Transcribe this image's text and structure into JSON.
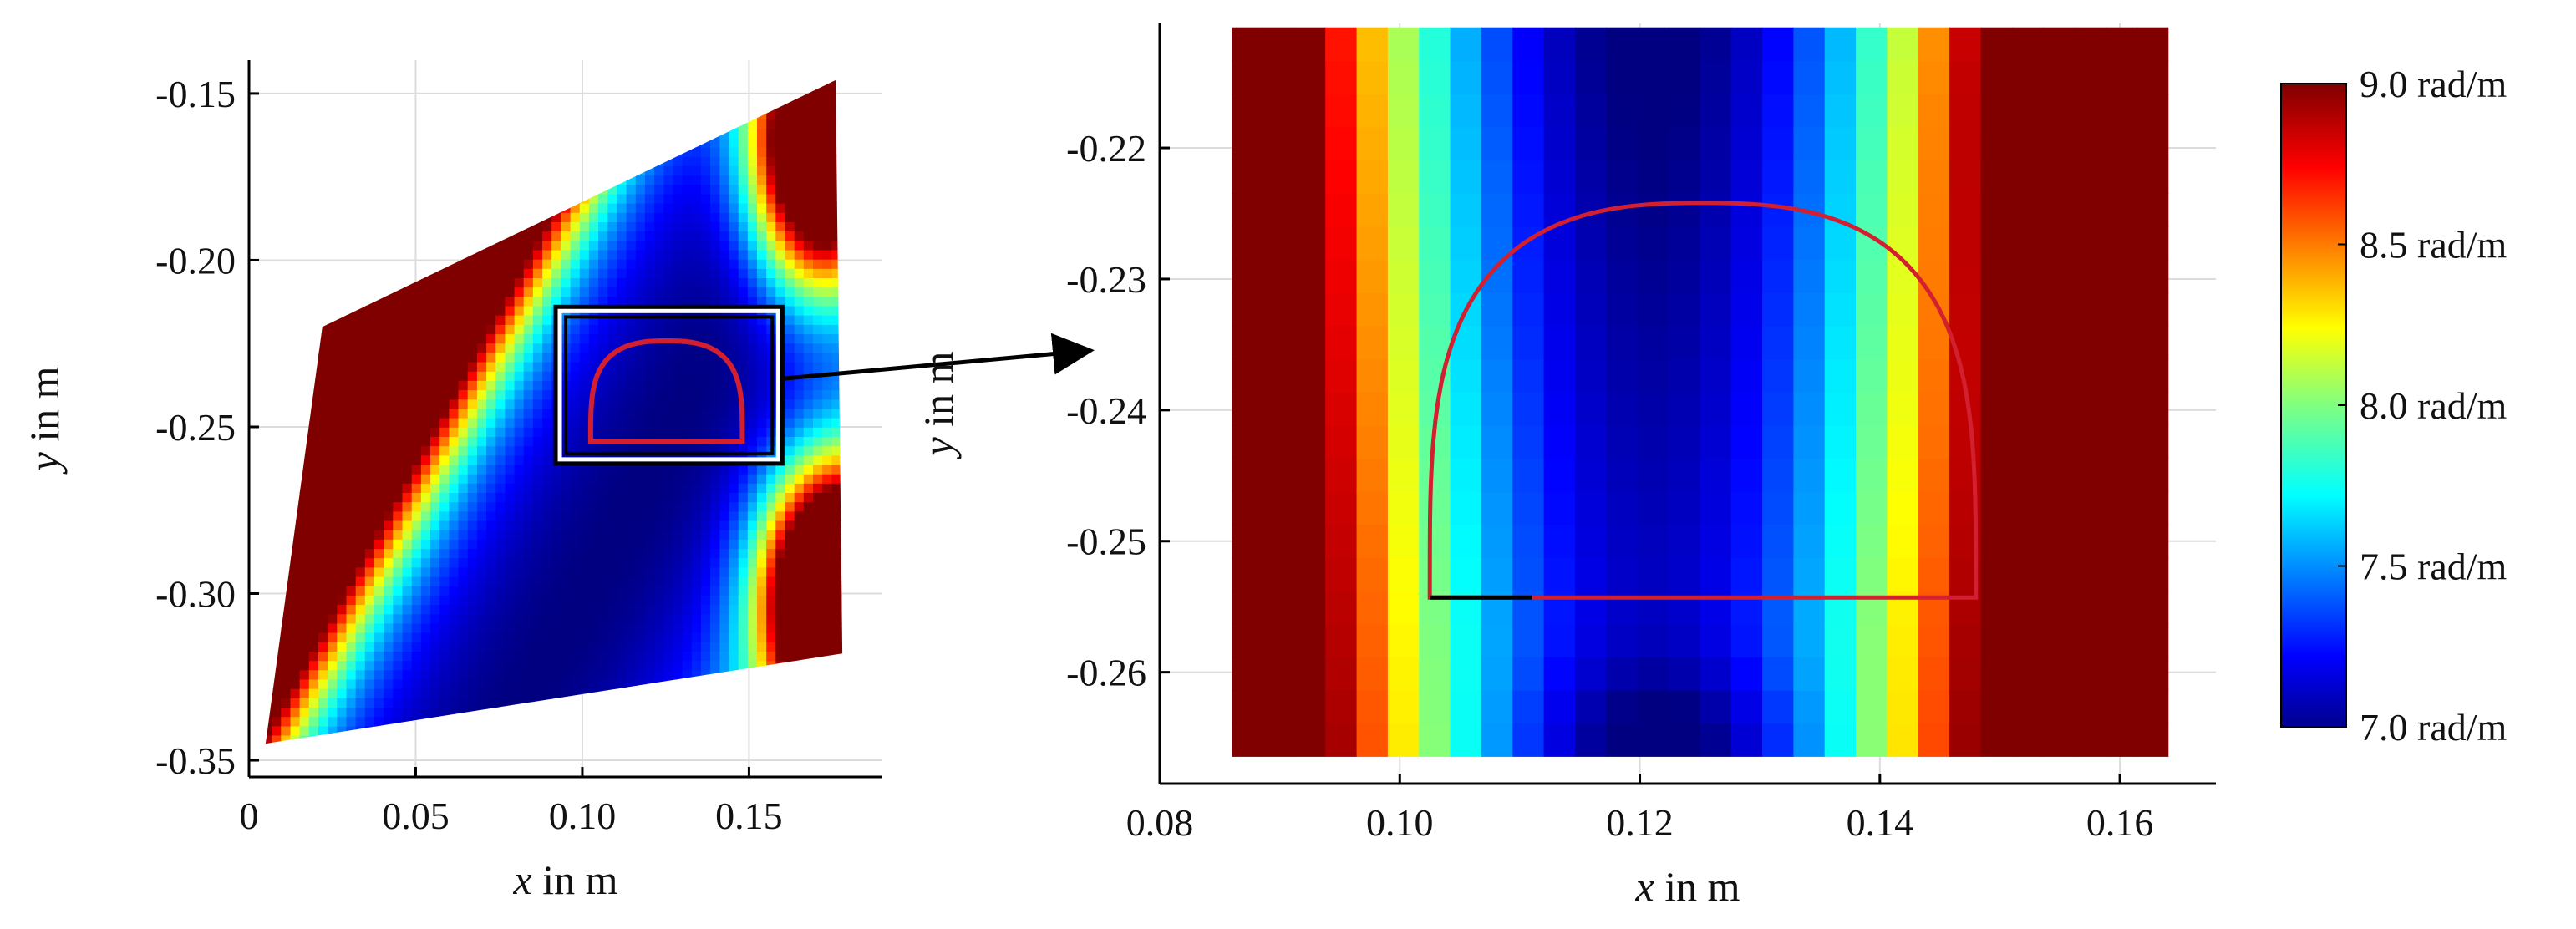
{
  "chart_data": [
    {
      "type": "heatmap",
      "title": "",
      "xlabel_var": "x",
      "xlabel_unit": "in m",
      "ylabel_var": "y",
      "ylabel_unit": "in m",
      "xlim": [
        0,
        0.19
      ],
      "ylim": [
        -0.355,
        -0.14
      ],
      "xticks": [
        0,
        0.05,
        0.1,
        0.15
      ],
      "xtick_labels": [
        "0",
        "0.05",
        "0.10",
        "0.15"
      ],
      "yticks": [
        -0.15,
        -0.2,
        -0.25,
        -0.3,
        -0.35
      ],
      "ytick_labels": [
        "-0.15",
        "-0.20",
        "-0.25",
        "-0.30",
        "-0.35"
      ],
      "grid": true,
      "field_region_corners": [
        [
          0.005,
          -0.345
        ],
        [
          0.022,
          -0.22
        ],
        [
          0.176,
          -0.146
        ],
        [
          0.178,
          -0.318
        ]
      ],
      "field_note": "Curvature field: high (>=9.0 rad/m) at left band and top-right/bottom-right corners, minimum (~7.0 rad/m) in diagonal valley near x=0.11-0.13",
      "zoom_box": {
        "x": [
          0.092,
          0.16
        ],
        "y": [
          -0.261,
          -0.214
        ]
      },
      "contour_outline": {
        "x_left": 0.1025,
        "x_right": 0.148,
        "y_bottom": -0.2543,
        "y_top": -0.2242
      }
    },
    {
      "type": "heatmap",
      "title": "",
      "xlabel_var": "x",
      "xlabel_unit": "in m",
      "ylabel_var": "y",
      "ylabel_unit": "in m",
      "xlim": [
        0.08,
        0.168
      ],
      "ylim": [
        -0.2685,
        -0.2105
      ],
      "xticks": [
        0.08,
        0.1,
        0.12,
        0.14,
        0.16
      ],
      "xtick_labels": [
        "0.08",
        "0.10",
        "0.12",
        "0.14",
        "0.16"
      ],
      "yticks": [
        -0.22,
        -0.23,
        -0.24,
        -0.25,
        -0.26
      ],
      "ytick_labels": [
        "-0.22",
        "-0.23",
        "-0.24",
        "-0.25",
        "-0.26"
      ],
      "grid": true,
      "field_extent": {
        "x": [
          0.086,
          0.164
        ],
        "y": [
          -0.2664,
          -0.2108
        ]
      },
      "contour_outline": {
        "x_left": 0.1025,
        "x_right": 0.148,
        "y_bottom": -0.2543,
        "y_top": -0.2242,
        "x_mid": 0.125
      },
      "black_segment_x": [
        0.1025,
        0.111
      ]
    }
  ],
  "colorbar": {
    "min": 7.0,
    "max": 9.0,
    "unit": "rad/m",
    "labels": [
      "9.0 rad/m",
      "8.5 rad/m",
      "8.0 rad/m",
      "7.5 rad/m",
      "7.0 rad/m"
    ],
    "label_values": [
      9.0,
      8.5,
      8.0,
      7.5,
      7.0
    ],
    "colormap": "jet"
  },
  "colors": {
    "outline": "#d22030",
    "zoom_box": "#000000",
    "grid": "#dcdcdc"
  }
}
